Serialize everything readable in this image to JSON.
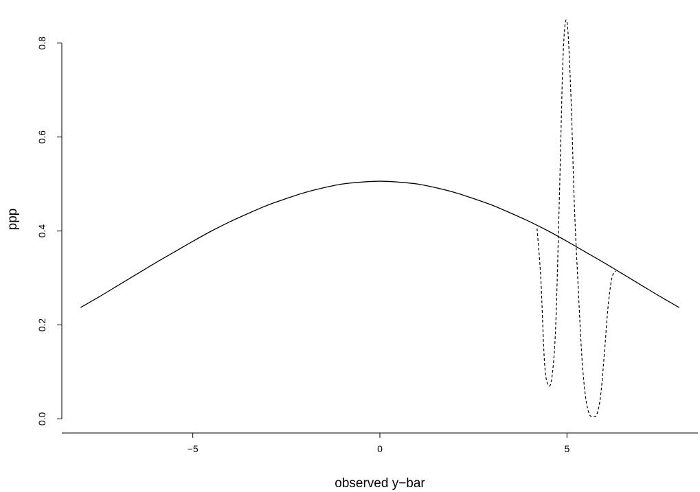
{
  "chart_data": {
    "type": "line",
    "title": "",
    "xlabel": "observed y−bar",
    "ylabel": "ppp",
    "xlim": [
      -8.5,
      8.5
    ],
    "ylim": [
      -0.03,
      0.88
    ],
    "x_ticks": [
      -5,
      0,
      5
    ],
    "x_tick_labels": [
      "−5",
      "0",
      "5"
    ],
    "y_ticks": [
      0.0,
      0.2,
      0.4,
      0.6,
      0.8
    ],
    "y_tick_labels": [
      "0.0",
      "0.2",
      "0.4",
      "0.6",
      "0.8"
    ],
    "grid": false,
    "legend": "none",
    "series": [
      {
        "style": "solid",
        "x": [
          -8,
          -7.5,
          -7,
          -6.5,
          -6,
          -5.5,
          -5,
          -4.5,
          -4,
          -3.5,
          -3,
          -2.5,
          -2,
          -1.5,
          -1,
          -0.5,
          0,
          0.5,
          1,
          1.5,
          2,
          2.5,
          3,
          3.5,
          4,
          4.5,
          5,
          5.5,
          6,
          6.5,
          7,
          7.5,
          8
        ],
        "y": [
          0.237,
          0.26,
          0.284,
          0.308,
          0.332,
          0.355,
          0.378,
          0.4,
          0.42,
          0.438,
          0.455,
          0.469,
          0.482,
          0.492,
          0.5,
          0.504,
          0.506,
          0.504,
          0.5,
          0.492,
          0.482,
          0.469,
          0.455,
          0.438,
          0.42,
          0.4,
          0.378,
          0.355,
          0.332,
          0.308,
          0.284,
          0.26,
          0.237
        ]
      },
      {
        "style": "dashed",
        "x": [
          4.2,
          4.3,
          4.4,
          4.5,
          4.6,
          4.7,
          4.8,
          4.9,
          5.0,
          5.1,
          5.2,
          5.3,
          5.4,
          5.5,
          5.6,
          5.7,
          5.8,
          5.9,
          6.0,
          6.1,
          6.2,
          6.3
        ],
        "y": [
          0.405,
          0.3,
          0.12,
          0.072,
          0.09,
          0.2,
          0.48,
          0.78,
          0.845,
          0.7,
          0.45,
          0.28,
          0.13,
          0.045,
          0.01,
          0.005,
          0.01,
          0.05,
          0.14,
          0.24,
          0.3,
          0.315
        ]
      }
    ]
  }
}
